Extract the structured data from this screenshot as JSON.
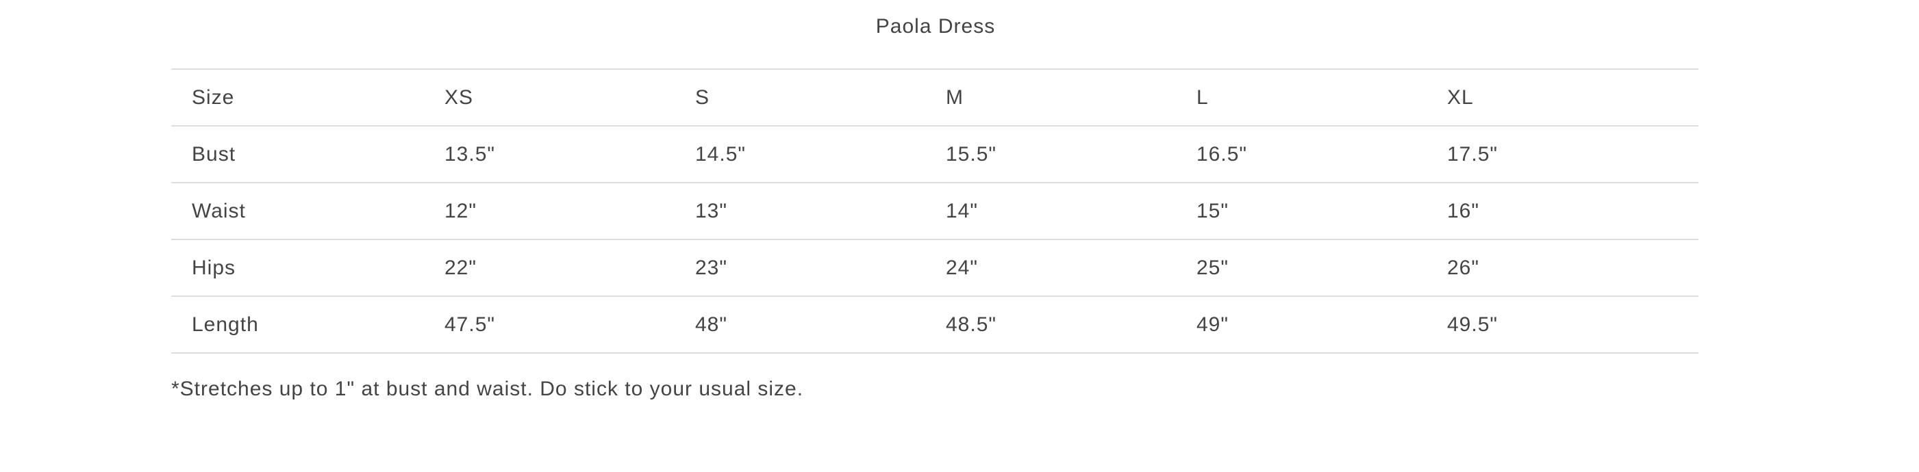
{
  "title": "Paola Dress",
  "table": {
    "header": [
      "Size",
      "XS",
      "S",
      "M",
      "L",
      "XL"
    ],
    "rows": [
      [
        "Bust",
        "13.5\"",
        "14.5\"",
        "15.5\"",
        "16.5\"",
        "17.5\""
      ],
      [
        "Waist",
        "12\"",
        "13\"",
        "14\"",
        "15\"",
        "16\""
      ],
      [
        "Hips",
        "22\"",
        "23\"",
        "24\"",
        "25\"",
        "26\""
      ],
      [
        "Length",
        "47.5\"",
        "48\"",
        "48.5\"",
        "49\"",
        "49.5\""
      ]
    ]
  },
  "note": "*Stretches up to 1\" at bust and waist. Do stick to your usual size."
}
